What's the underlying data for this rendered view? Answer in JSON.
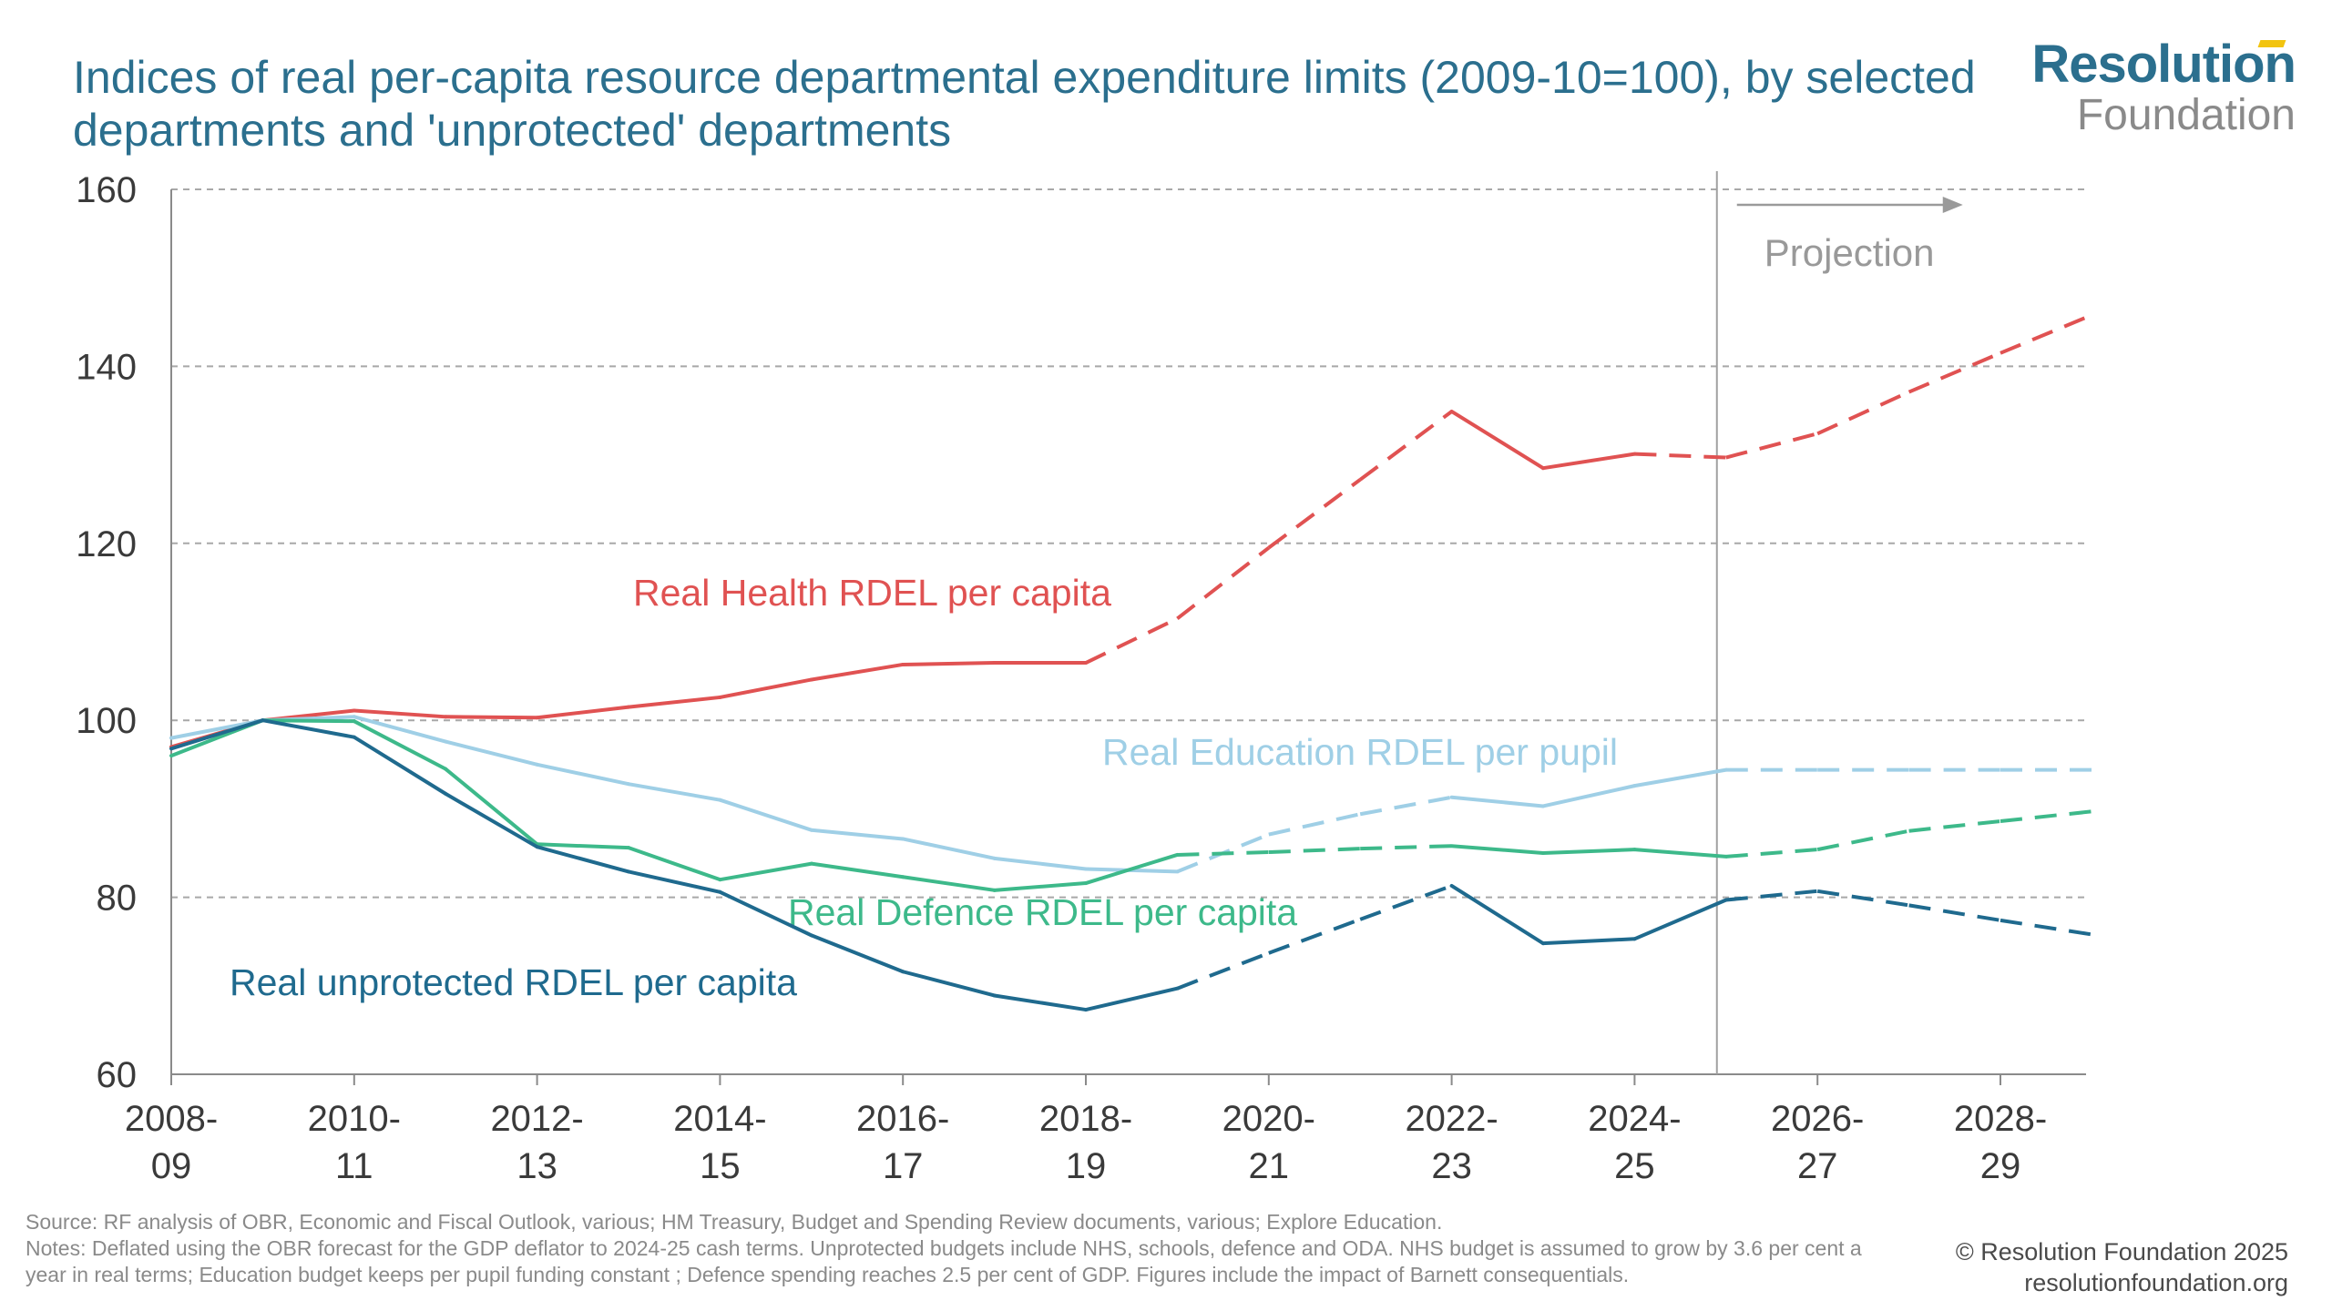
{
  "title": "Indices of real per-capita resource departmental expenditure limits (2009-10=100), by selected departments and 'unprotected' departments",
  "logo": {
    "line1": "Resolution",
    "line2": "Foundation"
  },
  "footer": {
    "source": "Source: RF analysis of OBR, Economic and Fiscal Outlook, various; HM Treasury, Budget and Spending Review documents, various; Explore Education.",
    "notes": "Notes: Deflated using the OBR forecast for the GDP deflator to 2024-25 cash terms. Unprotected budgets include NHS, schools, defence and ODA. NHS budget is assumed to grow by 3.6 per cent a year in real terms; Education budget keeps per pupil funding constant ; Defence spending reaches 2.5 per cent of GDP. Figures include the impact of Barnett consequentials.",
    "copyright": "© Resolution Foundation 2025",
    "website": "resolutionfoundation.org"
  },
  "chart_data": {
    "type": "line",
    "x": [
      "2008-09",
      "2009-10",
      "2010-11",
      "2011-12",
      "2012-13",
      "2013-14",
      "2014-15",
      "2015-16",
      "2016-17",
      "2017-18",
      "2018-19",
      "2019-20",
      "2020-21",
      "2021-22",
      "2022-23",
      "2023-24",
      "2024-25",
      "2025-26",
      "2026-27",
      "2027-28",
      "2028-29",
      "2029-30"
    ],
    "x_tick_labels": [
      {
        "x": "2008-09",
        "line1": "2008-",
        "line2": "09"
      },
      {
        "x": "2010-11",
        "line1": "2010-",
        "line2": "11"
      },
      {
        "x": "2012-13",
        "line1": "2012-",
        "line2": "13"
      },
      {
        "x": "2014-15",
        "line1": "2014-",
        "line2": "15"
      },
      {
        "x": "2016-17",
        "line1": "2016-",
        "line2": "17"
      },
      {
        "x": "2018-19",
        "line1": "2018-",
        "line2": "19"
      },
      {
        "x": "2020-21",
        "line1": "2020-",
        "line2": "21"
      },
      {
        "x": "2022-23",
        "line1": "2022-",
        "line2": "23"
      },
      {
        "x": "2024-25",
        "line1": "2024-",
        "line2": "25"
      },
      {
        "x": "2026-27",
        "line1": "2026-",
        "line2": "27"
      },
      {
        "x": "2028-29",
        "line1": "2028-",
        "line2": "29"
      }
    ],
    "ylim": [
      60,
      160
    ],
    "yticks": [
      60,
      80,
      100,
      120,
      140,
      160
    ],
    "grid": true,
    "projection_start": "2025-26",
    "projection_label": "Projection",
    "series": [
      {
        "name": "Real Health RDEL per capita",
        "color": "#e05252",
        "values": [
          97,
          100,
          101.1,
          100.4,
          100.3,
          101.5,
          102.6,
          104.6,
          106.3,
          106.5,
          106.5,
          111.5,
          119.5,
          127.2,
          134.9,
          128.5,
          130.1,
          129.7,
          132.4,
          137.1,
          141.5,
          145.8
        ],
        "dashed_ranges": [
          [
            10,
            14
          ],
          [
            16,
            21
          ]
        ]
      },
      {
        "name": "Real Education RDEL per pupil",
        "color": "#9fcfe6",
        "values": [
          98,
          100,
          100.4,
          97.6,
          95,
          92.8,
          91,
          87.6,
          86.6,
          84.4,
          83.2,
          82.9,
          87.1,
          89.4,
          91.3,
          90.3,
          92.6,
          94.4,
          94.4,
          94.4,
          94.4,
          94.4
        ],
        "dashed_ranges": [
          [
            11,
            14
          ],
          [
            17,
            21
          ]
        ]
      },
      {
        "name": "Real Defence RDEL per capita",
        "color": "#3db98a",
        "values": [
          96,
          100,
          99.9,
          94.5,
          86,
          85.6,
          82,
          83.8,
          82.3,
          80.8,
          81.6,
          84.8,
          85.1,
          85.5,
          85.8,
          85,
          85.4,
          84.6,
          85.4,
          87.5,
          88.6,
          89.7
        ],
        "dashed_ranges": [
          [
            11,
            14
          ],
          [
            17,
            21
          ]
        ]
      },
      {
        "name": "Real unprotected RDEL per capita",
        "color": "#1f6a8e",
        "values": [
          96.8,
          100,
          98.1,
          91.7,
          85.7,
          82.9,
          80.6,
          75.7,
          71.6,
          68.9,
          67.3,
          69.7,
          73.7,
          77.5,
          81.3,
          74.8,
          75.3,
          79.7,
          80.7,
          79.1,
          77.4,
          75.8
        ],
        "dashed_ranges": [
          [
            11,
            14
          ],
          [
            17,
            21
          ]
        ]
      }
    ]
  }
}
